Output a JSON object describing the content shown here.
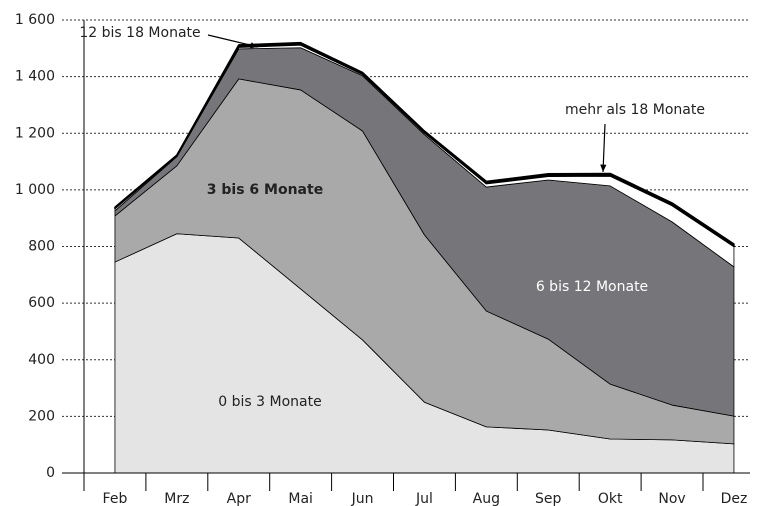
{
  "chart_data": {
    "type": "stacked-area",
    "categories": [
      "Feb",
      "Mrz",
      "Apr",
      "Mai",
      "Jun",
      "Jul",
      "Aug",
      "Sep",
      "Okt",
      "Nov",
      "Dez"
    ],
    "series": [
      {
        "name": "0 bis 3 Monate",
        "color": "#e4e4e4",
        "values": [
          745,
          845,
          830,
          650,
          470,
          250,
          163,
          152,
          120,
          117,
          103
        ]
      },
      {
        "name": "3 bis 6 Monate",
        "color": "#a9a9a9",
        "values": [
          163,
          240,
          562,
          703,
          738,
          591,
          409,
          321,
          194,
          123,
          98
        ]
      },
      {
        "name": "6 bis 12 Monate",
        "color": "#76767a",
        "values": [
          18,
          32,
          106,
          149,
          195,
          354,
          438,
          562,
          700,
          647,
          527
        ]
      },
      {
        "name": "12 bis 18 Monate",
        "color": "#ffffff",
        "values": [
          8,
          2,
          6,
          10,
          5,
          6,
          12,
          13,
          35,
          58,
          72
        ]
      },
      {
        "name": "mehr als 18 Monate",
        "color": "#000000",
        "values": [
          5,
          4,
          8,
          8,
          7,
          7,
          8,
          9,
          9,
          9,
          9
        ]
      }
    ],
    "ylim": [
      0,
      1600
    ],
    "yticks": [
      0,
      200,
      400,
      600,
      800,
      {
        "value": 1000,
        "label": "1 000"
      },
      {
        "value": 1200,
        "label": "1 200"
      },
      {
        "value": 1400,
        "label": "1 400"
      },
      {
        "value": 1600,
        "label": "1 600"
      }
    ],
    "grid": true
  }
}
